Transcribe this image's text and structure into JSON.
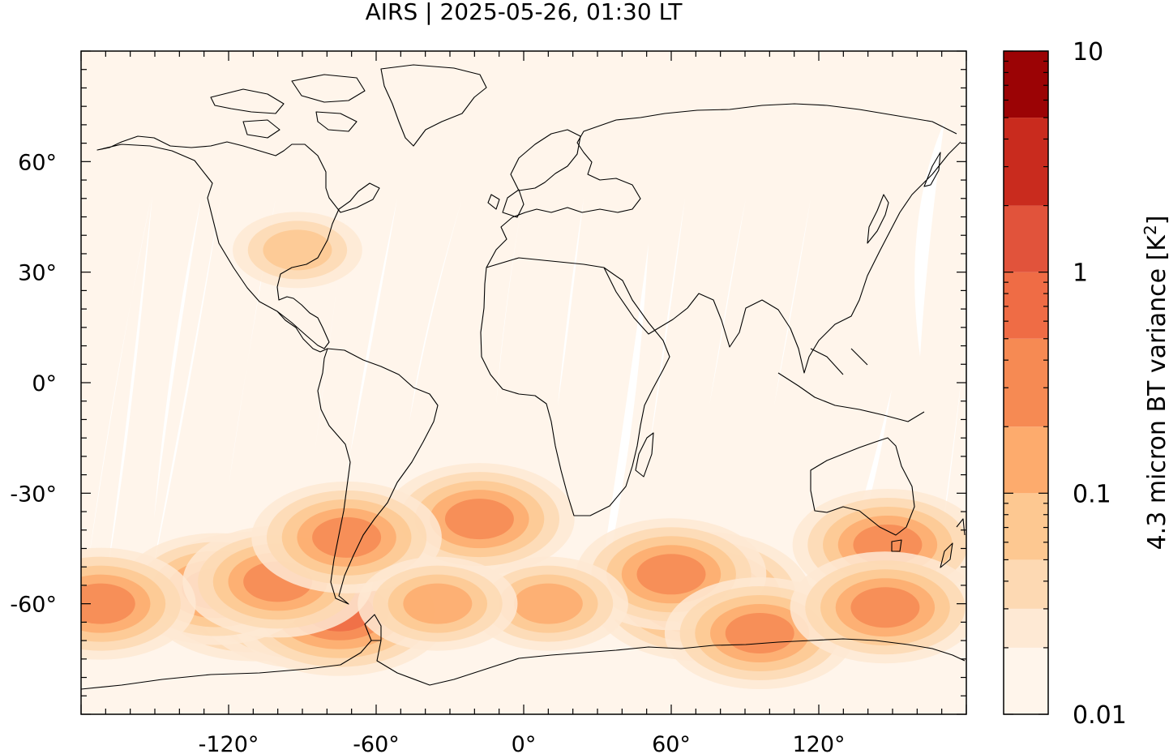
{
  "title": "AIRS | 2025-05-26, 01:30 LT",
  "map": {
    "projection": "equirectangular",
    "lon_range": [
      -180,
      180
    ],
    "lat_range": [
      -90,
      90
    ],
    "lat_ticks": [
      {
        "value": 60,
        "label": "60°"
      },
      {
        "value": 30,
        "label": "30°"
      },
      {
        "value": 0,
        "label": "0°"
      },
      {
        "value": -30,
        "label": "-30°"
      },
      {
        "value": -60,
        "label": "-60°"
      }
    ],
    "lon_ticks": [
      {
        "value": -120,
        "label": "-120°"
      },
      {
        "value": -60,
        "label": "-60°"
      },
      {
        "value": 0,
        "label": "0°"
      },
      {
        "value": 60,
        "label": "60°"
      },
      {
        "value": 120,
        "label": "120°"
      }
    ],
    "background_color": "#fff5eb",
    "swath_gap_color": "#ffffff",
    "coastline_color": "#000000"
  },
  "colorbar": {
    "label_main": "4.3 micron BT variance [K",
    "label_sup": "2",
    "label_end": "]",
    "scale": "log",
    "range": [
      0.01,
      10
    ],
    "tick_labels": [
      {
        "value": 10,
        "label": "10"
      },
      {
        "value": 1,
        "label": "1"
      },
      {
        "value": 0.1,
        "label": "0.1"
      },
      {
        "value": 0.01,
        "label": "0.01"
      }
    ],
    "levels": [
      {
        "low": 0.01,
        "high": 0.02,
        "color": "#fff5eb"
      },
      {
        "low": 0.02,
        "high": 0.03,
        "color": "#fee9d4"
      },
      {
        "low": 0.03,
        "high": 0.05,
        "color": "#fdd9b3"
      },
      {
        "low": 0.05,
        "high": 0.1,
        "color": "#fdc891"
      },
      {
        "low": 0.1,
        "high": 0.2,
        "color": "#fdab6d"
      },
      {
        "low": 0.2,
        "high": 0.5,
        "color": "#f68a53"
      },
      {
        "low": 0.5,
        "high": 1,
        "color": "#ef6c45"
      },
      {
        "low": 1,
        "high": 2,
        "color": "#e1533b"
      },
      {
        "low": 2,
        "high": 5,
        "color": "#c92b1e"
      },
      {
        "low": 5,
        "high": 10,
        "color": "#9b0305"
      }
    ]
  },
  "hotspots": [
    {
      "lon": -110,
      "lat": -58,
      "value": 0.6
    },
    {
      "lon": -88,
      "lat": -60,
      "value": 0.9
    },
    {
      "lon": -75,
      "lat": -62,
      "value": 0.7
    },
    {
      "lon": -125,
      "lat": -56,
      "value": 0.4
    },
    {
      "lon": -100,
      "lat": -54,
      "value": 0.3
    },
    {
      "lon": -172,
      "lat": -60,
      "value": 0.25
    },
    {
      "lon": -18,
      "lat": -37,
      "value": 0.2
    },
    {
      "lon": -72,
      "lat": -42,
      "value": 0.25
    },
    {
      "lon": 72,
      "lat": -58,
      "value": 0.5
    },
    {
      "lon": 60,
      "lat": -52,
      "value": 0.3
    },
    {
      "lon": 96,
      "lat": -68,
      "value": 0.35
    },
    {
      "lon": 148,
      "lat": -44,
      "value": 0.35
    },
    {
      "lon": 147,
      "lat": -61,
      "value": 0.25
    },
    {
      "lon": 10,
      "lat": -60,
      "value": 0.15
    },
    {
      "lon": -92,
      "lat": 36,
      "value": 0.08
    },
    {
      "lon": -35,
      "lat": -60,
      "value": 0.12
    }
  ]
}
